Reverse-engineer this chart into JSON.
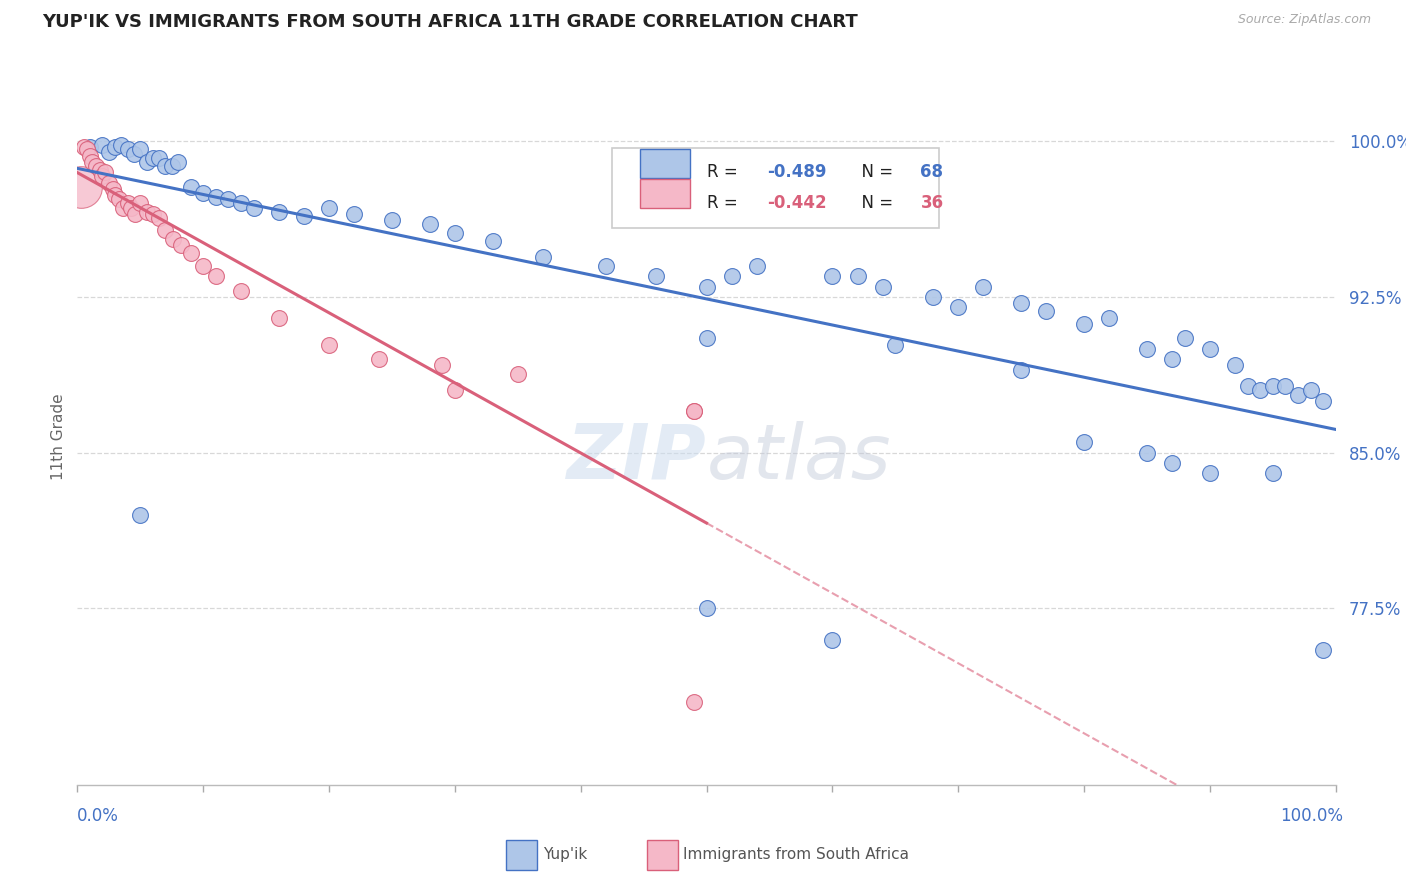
{
  "title": "YUP'IK VS IMMIGRANTS FROM SOUTH AFRICA 11TH GRADE CORRELATION CHART",
  "source": "Source: ZipAtlas.com",
  "ylabel": "11th Grade",
  "xlim": [
    0.0,
    1.0
  ],
  "ylim": [
    0.69,
    1.025
  ],
  "yticks": [
    0.775,
    0.85,
    0.925,
    1.0
  ],
  "ytick_labels": [
    "77.5%",
    "85.0%",
    "92.5%",
    "100.0%"
  ],
  "legend_blue_r": "-0.489",
  "legend_blue_n": "68",
  "legend_pink_r": "-0.442",
  "legend_pink_n": "36",
  "watermark_zip": "ZIP",
  "watermark_atlas": "atlas",
  "blue_color": "#aec6e8",
  "pink_color": "#f5b8c8",
  "blue_line_color": "#4472c4",
  "pink_line_color": "#d9607a",
  "title_color": "#222222",
  "axis_label_color": "#4472c4",
  "background_color": "#ffffff",
  "grid_color": "#d8d8d8",
  "blue_scatter_x": [
    0.01,
    0.02,
    0.025,
    0.03,
    0.035,
    0.04,
    0.045,
    0.05,
    0.055,
    0.06,
    0.065,
    0.07,
    0.075,
    0.08,
    0.09,
    0.1,
    0.11,
    0.12,
    0.13,
    0.14,
    0.16,
    0.18,
    0.2,
    0.22,
    0.25,
    0.28,
    0.3,
    0.33,
    0.37,
    0.42,
    0.46,
    0.5,
    0.52,
    0.54,
    0.6,
    0.62,
    0.64,
    0.68,
    0.7,
    0.72,
    0.75,
    0.77,
    0.8,
    0.82,
    0.85,
    0.87,
    0.88,
    0.9,
    0.92,
    0.93,
    0.94,
    0.95,
    0.96,
    0.97,
    0.98,
    0.99,
    0.5,
    0.65,
    0.75,
    0.8,
    0.85,
    0.87,
    0.9,
    0.95,
    0.5,
    0.6,
    0.99,
    0.05
  ],
  "blue_scatter_y": [
    0.997,
    0.998,
    0.995,
    0.997,
    0.998,
    0.996,
    0.994,
    0.996,
    0.99,
    0.992,
    0.992,
    0.988,
    0.988,
    0.99,
    0.978,
    0.975,
    0.973,
    0.972,
    0.97,
    0.968,
    0.966,
    0.964,
    0.968,
    0.965,
    0.962,
    0.96,
    0.956,
    0.952,
    0.944,
    0.94,
    0.935,
    0.93,
    0.935,
    0.94,
    0.935,
    0.935,
    0.93,
    0.925,
    0.92,
    0.93,
    0.922,
    0.918,
    0.912,
    0.915,
    0.9,
    0.895,
    0.905,
    0.9,
    0.892,
    0.882,
    0.88,
    0.882,
    0.882,
    0.878,
    0.88,
    0.875,
    0.905,
    0.902,
    0.89,
    0.855,
    0.85,
    0.845,
    0.84,
    0.84,
    0.775,
    0.76,
    0.755,
    0.82
  ],
  "pink_scatter_x": [
    0.005,
    0.008,
    0.01,
    0.012,
    0.015,
    0.018,
    0.02,
    0.022,
    0.025,
    0.028,
    0.03,
    0.033,
    0.036,
    0.04,
    0.043,
    0.046,
    0.05,
    0.055,
    0.06,
    0.065,
    0.07,
    0.076,
    0.082,
    0.09,
    0.1,
    0.11,
    0.13,
    0.16,
    0.2,
    0.24,
    0.29,
    0.35,
    0.49,
    0.49,
    0.49,
    0.3
  ],
  "pink_scatter_y": [
    0.997,
    0.996,
    0.993,
    0.99,
    0.988,
    0.986,
    0.983,
    0.985,
    0.98,
    0.977,
    0.974,
    0.972,
    0.968,
    0.97,
    0.968,
    0.965,
    0.97,
    0.966,
    0.965,
    0.963,
    0.957,
    0.953,
    0.95,
    0.946,
    0.94,
    0.935,
    0.928,
    0.915,
    0.902,
    0.895,
    0.892,
    0.888,
    0.87,
    0.87,
    0.73,
    0.88
  ],
  "pink_large_x": [
    0.003
  ],
  "pink_large_y": [
    0.978
  ],
  "pink_large_s": 900
}
